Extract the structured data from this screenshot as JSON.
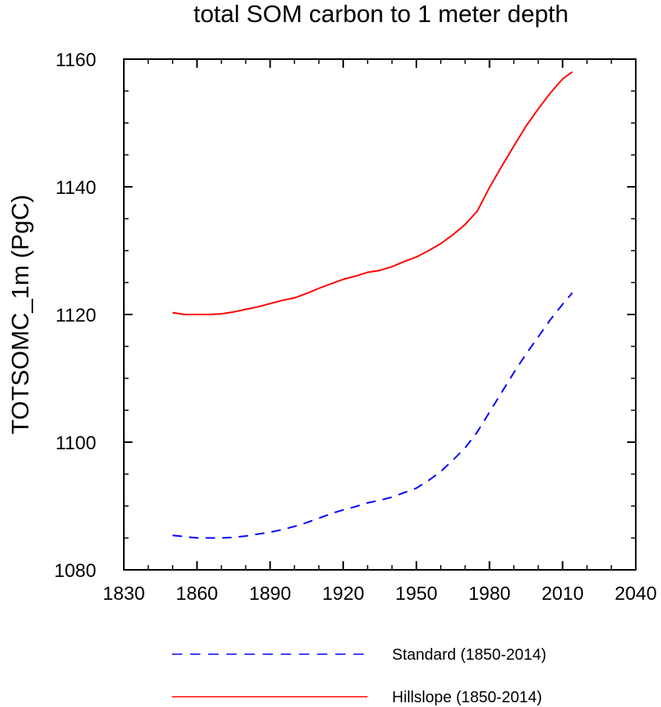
{
  "chart_data": {
    "type": "line",
    "title": "total SOM carbon to 1 meter depth",
    "xlabel": "",
    "ylabel": "TOTSOMC_1m  (PgC)",
    "xlim": [
      1830,
      2040
    ],
    "ylim": [
      1080,
      1160
    ],
    "xticks": [
      1830,
      1860,
      1890,
      1920,
      1950,
      1980,
      2010,
      2040
    ],
    "xtick_labels": [
      "1830",
      "1860",
      "1890",
      "1920",
      "1950",
      "1980",
      "2010",
      "2040"
    ],
    "yticks": [
      1080,
      1100,
      1120,
      1140,
      1160
    ],
    "ytick_labels": [
      "1080",
      "1100",
      "1120",
      "1140",
      "1160"
    ],
    "x_minor_step": 10,
    "y_minor_step": 5,
    "grid": false,
    "legend_position": "bottom",
    "series": [
      {
        "name": "Standard (1850-2014)",
        "color": "#0000ff",
        "style": "dashed",
        "x": [
          1850,
          1855,
          1860,
          1865,
          1870,
          1875,
          1880,
          1885,
          1890,
          1895,
          1900,
          1905,
          1910,
          1915,
          1920,
          1925,
          1930,
          1935,
          1940,
          1945,
          1950,
          1955,
          1960,
          1965,
          1970,
          1975,
          1980,
          1985,
          1990,
          1995,
          2000,
          2005,
          2010,
          2014
        ],
        "y": [
          1085.4,
          1085.2,
          1085.0,
          1085.0,
          1085.0,
          1085.1,
          1085.3,
          1085.6,
          1085.9,
          1086.3,
          1086.8,
          1087.4,
          1088.1,
          1088.8,
          1089.4,
          1089.9,
          1090.5,
          1090.9,
          1091.4,
          1092.1,
          1092.8,
          1094.0,
          1095.4,
          1097.2,
          1099.1,
          1101.6,
          1104.7,
          1107.8,
          1110.9,
          1113.8,
          1116.5,
          1119.2,
          1121.6,
          1123.4
        ]
      },
      {
        "name": "Hillslope (1850-2014)",
        "color": "#ff0000",
        "style": "solid",
        "x": [
          1850,
          1855,
          1860,
          1865,
          1870,
          1875,
          1880,
          1885,
          1890,
          1895,
          1900,
          1905,
          1910,
          1915,
          1920,
          1925,
          1930,
          1935,
          1940,
          1945,
          1950,
          1955,
          1960,
          1965,
          1970,
          1975,
          1980,
          1985,
          1990,
          1995,
          2000,
          2005,
          2010,
          2014
        ],
        "y": [
          1120.3,
          1120.0,
          1120.0,
          1120.0,
          1120.1,
          1120.4,
          1120.8,
          1121.2,
          1121.7,
          1122.2,
          1122.6,
          1123.3,
          1124.1,
          1124.8,
          1125.5,
          1126.0,
          1126.6,
          1126.9,
          1127.5,
          1128.3,
          1129.0,
          1130.0,
          1131.1,
          1132.5,
          1134.1,
          1136.2,
          1139.9,
          1143.2,
          1146.4,
          1149.5,
          1152.2,
          1154.7,
          1156.9,
          1158.0
        ]
      }
    ]
  }
}
